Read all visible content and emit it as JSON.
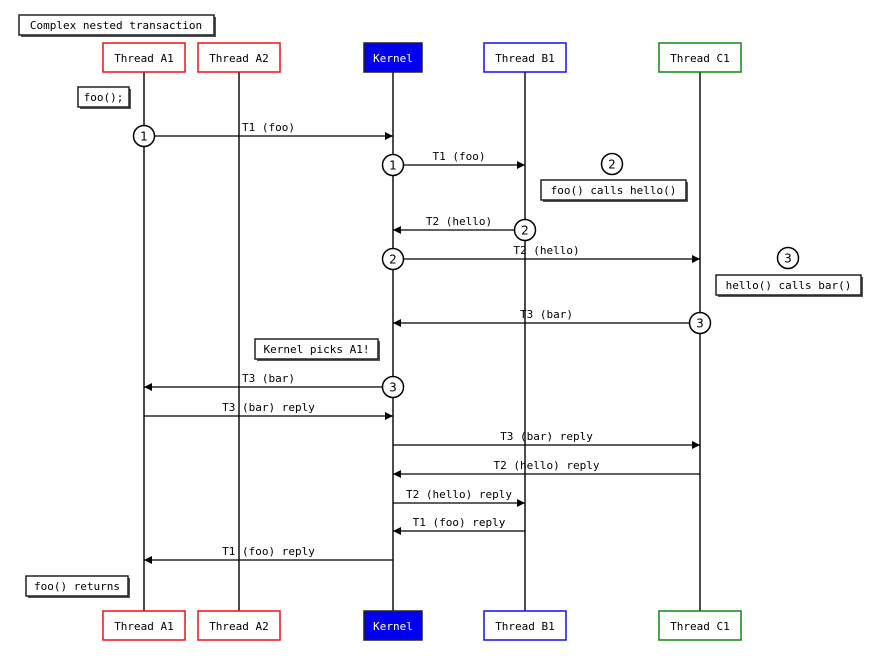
{
  "title": "Complex nested transaction",
  "participants": [
    {
      "id": "A1",
      "label": "Thread A1",
      "border": "#ee1111",
      "fill": "#ffffff",
      "text": "#000000"
    },
    {
      "id": "A2",
      "label": "Thread A2",
      "border": "#ee1111",
      "fill": "#ffffff",
      "text": "#000000"
    },
    {
      "id": "K",
      "label": "Kernel",
      "border": "#222222",
      "fill": "#0000ee",
      "text": "#ffffff"
    },
    {
      "id": "B1",
      "label": "Thread B1",
      "border": "#1111ee",
      "fill": "#ffffff",
      "text": "#000000"
    },
    {
      "id": "C1",
      "label": "Thread C1",
      "border": "#118811",
      "fill": "#ffffff",
      "text": "#000000"
    }
  ],
  "messages": [
    {
      "from": "A1",
      "to": "K",
      "label": "T1 (foo)",
      "marker": "1"
    },
    {
      "from": "K",
      "to": "B1",
      "label": "T1 (foo)",
      "marker": "1"
    },
    {
      "from": "B1",
      "to": "K",
      "label": "T2 (hello)",
      "marker": "2"
    },
    {
      "from": "K",
      "to": "C1",
      "label": "T2 (hello)",
      "marker": "2"
    },
    {
      "from": "C1",
      "to": "K",
      "label": "T3 (bar)",
      "marker": "3"
    },
    {
      "from": "K",
      "to": "A1",
      "label": "T3 (bar)",
      "marker": "3"
    },
    {
      "from": "A1",
      "to": "K",
      "label": "T3 (bar) reply",
      "marker": ""
    },
    {
      "from": "K",
      "to": "C1",
      "label": "T3 (bar) reply",
      "marker": ""
    },
    {
      "from": "C1",
      "to": "K",
      "label": "T2 (hello) reply",
      "marker": ""
    },
    {
      "from": "K",
      "to": "B1",
      "label": "T2 (hello) reply",
      "marker": ""
    },
    {
      "from": "B1",
      "to": "K",
      "label": "T1 (foo) reply",
      "marker": ""
    },
    {
      "from": "K",
      "to": "A1",
      "label": "T1 (foo) reply",
      "marker": ""
    }
  ],
  "notes": [
    {
      "text": "foo();",
      "marker": ""
    },
    {
      "text": "foo() calls hello()",
      "marker": "2"
    },
    {
      "text": "hello() calls bar()",
      "marker": "3"
    },
    {
      "text": "Kernel picks A1!",
      "marker": ""
    },
    {
      "text": "foo() returns",
      "marker": ""
    }
  ]
}
